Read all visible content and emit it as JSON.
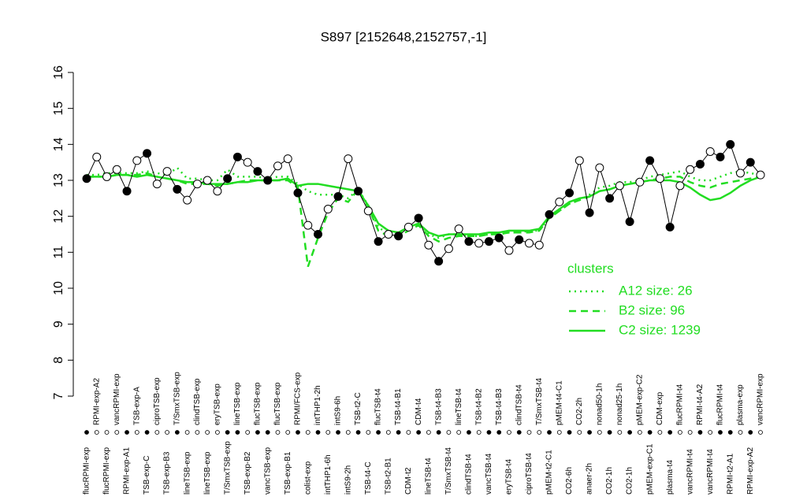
{
  "chart_data": {
    "type": "line",
    "title": "S897 [2152648,2152757,-1]",
    "categories": [
      "flucRPMI-exp",
      "RPMI-exp-A2",
      "flucRPMI-exp",
      "vancRPMI-exp",
      "RPMI-exp-A1",
      "TSB-exp-A",
      "TSB-exp-C",
      "ciproTSB-exp",
      "TSB-exp-B3",
      "T/SmxTSB-exp",
      "lineTSB-exp",
      "clindTSB-exp",
      "lineTSB-exp",
      "eryTSB-exp",
      "T/SmxTSB-exp",
      "lineTSB-exp",
      "TSB-exp-B2",
      "flucTSB-exp",
      "vancTSB-exp",
      "flucTSB-exp",
      "TSB-exp-B1",
      "RPMI/FCS-exp",
      "colist-exp",
      "intTHP1-2h",
      "intTHP1-6h",
      "intS9-6h",
      "intS9-2h",
      "TSB-t2-C",
      "TSB-t4-C",
      "flucTSB-t4",
      "TSB-t2-B1",
      "TSB-t4-B1",
      "CDM-t2",
      "CDM-t4",
      "lineTSB-t4",
      "TSB-t4-B3",
      "T/SmxTSB-t4",
      "lineTSB-t4",
      "clindTSB-t4",
      "TSB-t4-B2",
      "vancTSB-t4",
      "TSB-t4-B3",
      "eryTSB-t4",
      "clindTSB-t4",
      "ciproTSB-t4",
      "T/SmxTSB-t4",
      "pMEM-t2-C1",
      "pMEM-t4-C1",
      "CO2-6h",
      "CO2-2h",
      "anaer-2h",
      "nonad50-1h",
      "CO2-1h",
      "nonad25-1h",
      "CO2-1h",
      "pMEM-exp-C2",
      "pMEM-exp-C1",
      "CDM-exp",
      "plasma-t4",
      "flucRPMI-t4",
      "vancRPMI-t4",
      "RPMI-t4-A2",
      "vancRPMI-t4",
      "flucRPMI-t4",
      "RPMI-t2-A1",
      "plasma-exp",
      "RPMI-exp-A2",
      "vancRPMI-exp"
    ],
    "points": {
      "values": [
        13.05,
        13.65,
        13.1,
        13.3,
        12.7,
        13.55,
        13.75,
        12.9,
        13.25,
        12.75,
        12.45,
        12.9,
        13.0,
        12.7,
        13.05,
        13.65,
        13.5,
        13.25,
        13.0,
        13.4,
        13.6,
        12.65,
        11.75,
        11.5,
        12.2,
        12.55,
        13.6,
        12.7,
        12.15,
        11.3,
        11.5,
        11.45,
        11.7,
        11.95,
        11.2,
        10.75,
        11.1,
        11.65,
        11.3,
        11.25,
        11.3,
        11.4,
        11.05,
        11.35,
        11.25,
        11.2,
        12.05,
        12.4,
        12.65,
        13.55,
        12.1,
        13.35,
        12.5,
        12.85,
        11.85,
        12.95,
        13.55,
        13.05,
        11.7,
        12.85,
        13.3,
        13.45,
        13.8,
        13.65,
        14.0,
        13.2,
        13.5,
        13.15
      ],
      "filled": [
        true,
        false,
        false,
        false,
        true,
        false,
        true,
        false,
        false,
        true,
        false,
        false,
        false,
        false,
        true,
        true,
        false,
        true,
        true,
        false,
        false,
        true,
        false,
        true,
        false,
        true,
        false,
        true,
        false,
        true,
        false,
        true,
        false,
        true,
        false,
        true,
        false,
        false,
        true,
        false,
        true,
        true,
        false,
        true,
        false,
        false,
        true,
        false,
        true,
        false,
        true,
        false,
        true,
        false,
        true,
        false,
        true,
        false,
        true,
        false,
        false,
        true,
        false,
        true,
        true,
        false,
        true,
        false
      ]
    },
    "series": [
      {
        "name": "A12 size: 26",
        "color": "#22dd22",
        "dash": "dotted",
        "values": [
          13.15,
          13.15,
          13.2,
          13.2,
          13.2,
          13.2,
          13.25,
          13.2,
          13.15,
          13.35,
          13.05,
          13.05,
          13.0,
          13.0,
          13.3,
          13.1,
          13.1,
          13.1,
          13.05,
          13.1,
          13.1,
          12.9,
          12.7,
          12.6,
          12.6,
          12.6,
          12.5,
          12.75,
          12.3,
          11.7,
          11.5,
          11.5,
          11.65,
          11.8,
          11.5,
          11.4,
          11.5,
          11.5,
          11.45,
          11.45,
          11.5,
          11.5,
          11.55,
          11.55,
          11.6,
          11.6,
          11.95,
          12.15,
          12.35,
          12.45,
          12.6,
          12.8,
          12.85,
          12.95,
          12.95,
          13.0,
          13.1,
          13.15,
          13.2,
          13.25,
          13.1,
          13.0,
          13.0,
          13.1,
          13.2,
          13.25,
          13.2,
          13.15
        ]
      },
      {
        "name": "B2 size: 96",
        "color": "#22dd22",
        "dash": "dashed",
        "values": [
          13.1,
          13.1,
          13.1,
          13.15,
          13.15,
          13.15,
          13.2,
          13.1,
          13.05,
          13.0,
          12.9,
          12.9,
          12.9,
          12.85,
          12.9,
          12.95,
          13.0,
          13.0,
          13.0,
          13.0,
          13.0,
          12.8,
          10.6,
          11.4,
          12.1,
          12.5,
          12.4,
          12.75,
          12.25,
          11.6,
          11.45,
          11.45,
          11.6,
          11.75,
          11.45,
          11.3,
          11.4,
          11.45,
          11.45,
          11.45,
          11.5,
          11.5,
          11.55,
          11.55,
          11.55,
          11.6,
          11.95,
          12.15,
          12.35,
          12.45,
          12.55,
          12.7,
          12.75,
          12.85,
          12.9,
          12.95,
          13.0,
          13.05,
          13.1,
          13.1,
          12.95,
          12.85,
          12.8,
          12.9,
          12.95,
          13.0,
          13.05,
          13.1
        ]
      },
      {
        "name": "C2 size: 1239",
        "color": "#22dd22",
        "dash": "solid",
        "values": [
          13.1,
          13.1,
          13.1,
          13.15,
          13.15,
          13.1,
          13.15,
          13.1,
          13.05,
          13.0,
          12.95,
          12.95,
          12.9,
          12.9,
          12.9,
          12.95,
          12.95,
          13.0,
          13.0,
          13.0,
          13.05,
          12.85,
          12.9,
          12.9,
          12.85,
          12.8,
          12.75,
          12.7,
          12.3,
          11.8,
          11.6,
          11.55,
          11.7,
          11.8,
          11.55,
          11.45,
          11.5,
          11.5,
          11.5,
          11.5,
          11.55,
          11.55,
          11.6,
          11.6,
          11.6,
          11.65,
          12.0,
          12.2,
          12.4,
          12.5,
          12.55,
          12.7,
          12.75,
          12.85,
          12.9,
          12.95,
          13.0,
          13.0,
          13.0,
          12.95,
          12.8,
          12.6,
          12.45,
          12.5,
          12.65,
          12.85,
          13.0,
          13.1
        ]
      }
    ],
    "legend_title": "clusters",
    "ylim": [
      7,
      16
    ],
    "yticks": [
      7,
      8,
      9,
      10,
      11,
      12,
      13,
      14,
      15,
      16
    ]
  }
}
